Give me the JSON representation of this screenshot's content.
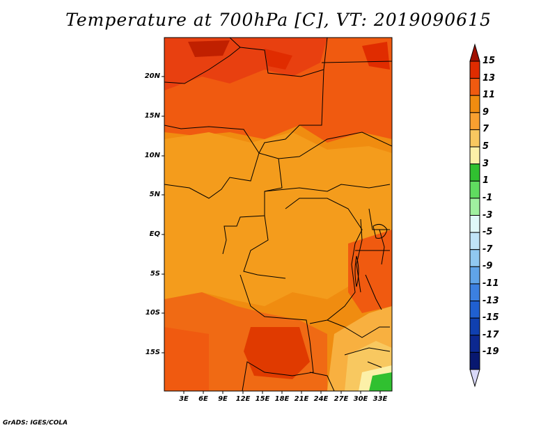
{
  "title": "Temperature at 700hPa [C], VT: 2019090615",
  "credit": "GrADS: IGES/COLA",
  "map": {
    "variable": "Temperature at 700hPa",
    "unit": "C",
    "valid_time": "2019090615",
    "lat_labels": [
      "20N",
      "15N",
      "10N",
      "5N",
      "EQ",
      "5S",
      "10S",
      "15S"
    ],
    "lon_labels": [
      "3E",
      "6E",
      "9E",
      "12E",
      "15E",
      "18E",
      "21E",
      "24E",
      "27E",
      "30E",
      "33E"
    ]
  },
  "colorbar": {
    "labels": [
      "15",
      "13",
      "11",
      "9",
      "7",
      "5",
      "3",
      "1",
      "-1",
      "-3",
      "-5",
      "-7",
      "-9",
      "-11",
      "-13",
      "-15",
      "-17",
      "-19"
    ],
    "colors": [
      "#a01000",
      "#e02c00",
      "#f05a10",
      "#f08c10",
      "#f8a030",
      "#f8c860",
      "#fcf0a8",
      "#30c030",
      "#60dc60",
      "#a0f0a0",
      "#e0f8f8",
      "#c0e4f8",
      "#90c8f0",
      "#60a4e8",
      "#3c80e0",
      "#2060d0",
      "#1040b0",
      "#0c2890",
      "#081870",
      "#d8d8f8"
    ]
  }
}
